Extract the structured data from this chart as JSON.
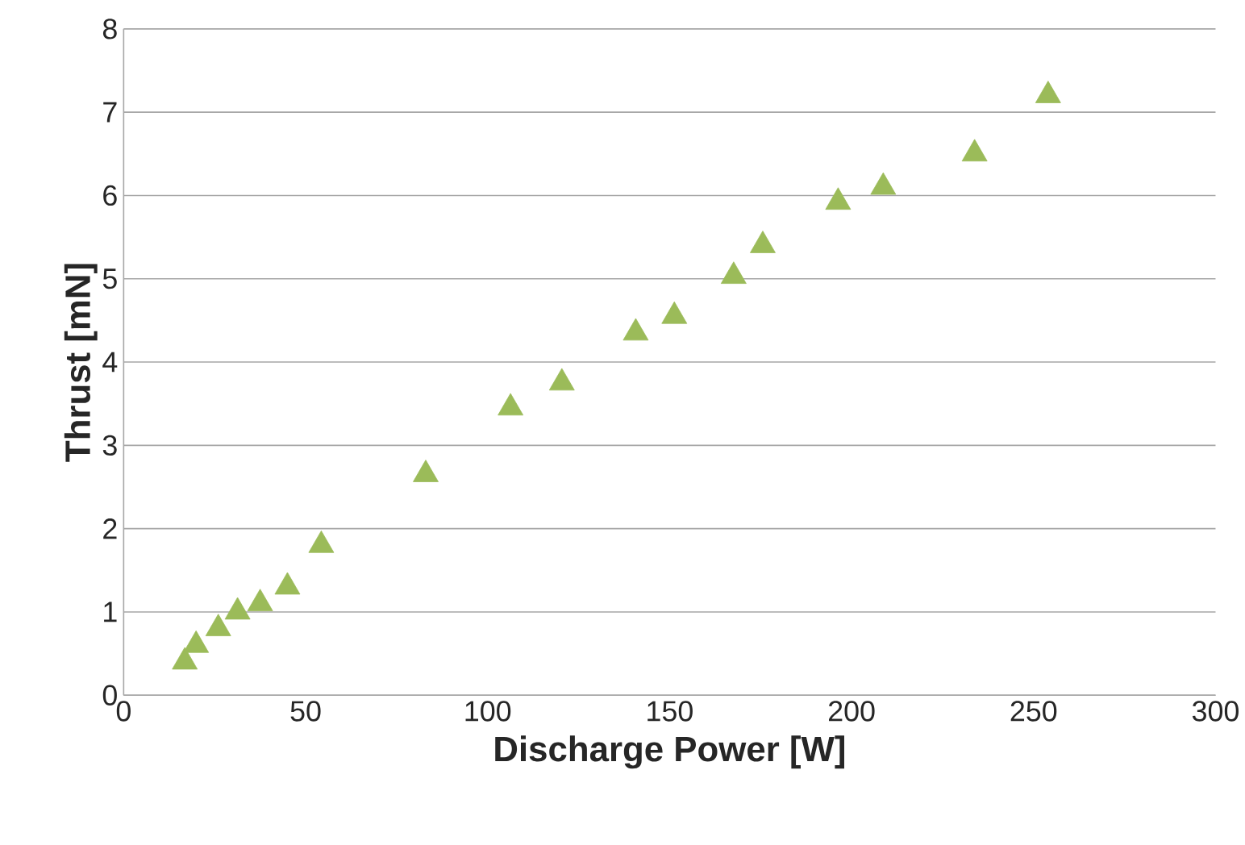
{
  "chart_data": {
    "type": "scatter",
    "xlabel": "Discharge Power [W]",
    "ylabel": "Thrust [mN]",
    "x": [
      16.8,
      19.9,
      26,
      31.3,
      37.5,
      45,
      54.3,
      83,
      106.3,
      120.4,
      140.7,
      151.3,
      167.6,
      175.6,
      196.3,
      208.7,
      233.8,
      254
    ],
    "values": [
      0.4,
      0.6,
      0.8,
      1.0,
      1.1,
      1.3,
      1.8,
      2.65,
      3.45,
      3.75,
      4.35,
      4.55,
      5.03,
      5.4,
      5.92,
      6.1,
      6.5,
      7.2
    ],
    "color": "#9bbb59",
    "marker": "triangle",
    "xlim": [
      0,
      300
    ],
    "ylim": [
      0,
      8
    ],
    "xticks": [
      0,
      50,
      100,
      150,
      200,
      250,
      300
    ],
    "yticks": [
      0,
      1,
      2,
      3,
      4,
      5,
      6,
      7,
      8
    ],
    "grid": "y"
  }
}
